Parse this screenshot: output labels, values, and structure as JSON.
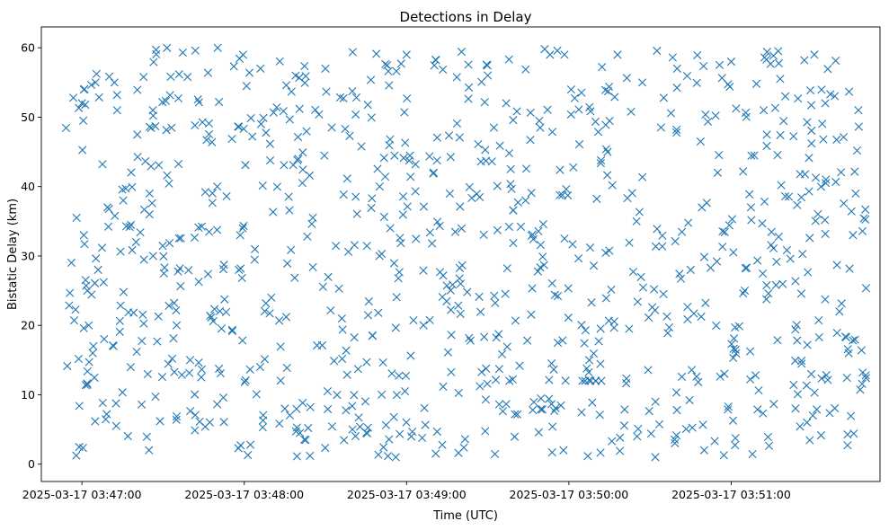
{
  "chart_data": {
    "type": "scatter",
    "title": "Detections in Delay",
    "xlabel": "Time (UTC)",
    "ylabel": "Bistatic Delay (km)",
    "x_unit": "seconds since 2025-03-17 03:46:00 UTC",
    "xlim": [
      45,
      355
    ],
    "ylim": [
      -2.5,
      63
    ],
    "x_ticks": [
      {
        "value": 60,
        "label": "2025-03-17 03:47:00"
      },
      {
        "value": 120,
        "label": "2025-03-17 03:48:00"
      },
      {
        "value": 180,
        "label": "2025-03-17 03:49:00"
      },
      {
        "value": 240,
        "label": "2025-03-17 03:50:00"
      },
      {
        "value": 300,
        "label": "2025-03-17 03:51:00"
      }
    ],
    "y_ticks": [
      {
        "value": 0,
        "label": "0"
      },
      {
        "value": 10,
        "label": "10"
      },
      {
        "value": 20,
        "label": "20"
      },
      {
        "value": 30,
        "label": "30"
      },
      {
        "value": 40,
        "label": "40"
      },
      {
        "value": 50,
        "label": "50"
      },
      {
        "value": 60,
        "label": "60"
      }
    ],
    "marker": "x",
    "color": "#1f77b4",
    "grid": false,
    "x_range": [
      54,
      350
    ],
    "approx_point_count": 900,
    "sample_points": [
      [
        60,
        52
      ],
      [
        60.5,
        49.5
      ],
      [
        60.7,
        33
      ],
      [
        62,
        25
      ],
      [
        62.5,
        20
      ],
      [
        64,
        16
      ],
      [
        65,
        55
      ],
      [
        66,
        28
      ],
      [
        72,
        55
      ],
      [
        73,
        51
      ],
      [
        80,
        32
      ],
      [
        85,
        39
      ],
      [
        95,
        20
      ],
      [
        100,
        15
      ],
      [
        110,
        40
      ],
      [
        118,
        28
      ],
      [
        126,
        57
      ],
      [
        130,
        24
      ],
      [
        135,
        8
      ],
      [
        140,
        44
      ],
      [
        150,
        57
      ],
      [
        160,
        5
      ],
      [
        170,
        30
      ],
      [
        176,
        1
      ],
      [
        180,
        59
      ],
      [
        190,
        42
      ],
      [
        200,
        26
      ],
      [
        210,
        56
      ],
      [
        218,
        12
      ],
      [
        224,
        38
      ],
      [
        233,
        59
      ],
      [
        238,
        2
      ],
      [
        245,
        12
      ],
      [
        246,
        12
      ],
      [
        248,
        12
      ],
      [
        250,
        12
      ],
      [
        252,
        12
      ],
      [
        258,
        59
      ],
      [
        265,
        35
      ],
      [
        272,
        9
      ],
      [
        280,
        57
      ],
      [
        285,
        28
      ],
      [
        290,
        2
      ],
      [
        295,
        42
      ],
      [
        300,
        58
      ],
      [
        305,
        25
      ],
      [
        312,
        51
      ],
      [
        320,
        53
      ],
      [
        328,
        6
      ],
      [
        335,
        41
      ],
      [
        340,
        22
      ],
      [
        345,
        33
      ],
      [
        346,
        39
      ],
      [
        347,
        51
      ]
    ]
  }
}
